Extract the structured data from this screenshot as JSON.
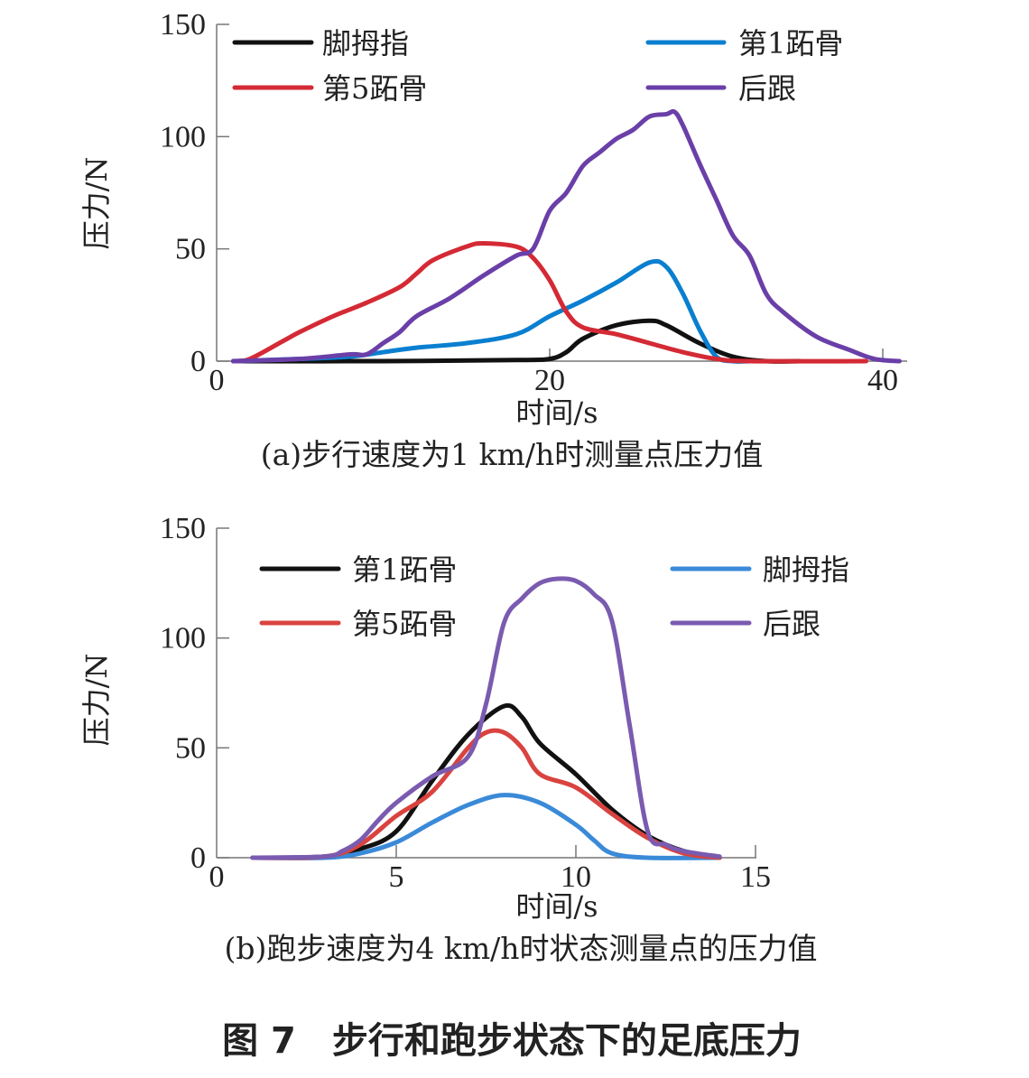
{
  "figure_title": "图 7　步行和跑步状态下的足底压力",
  "chart_data": [
    {
      "type": "line",
      "caption": "(a)步行速度为1 km/h时测量点压力值",
      "xlabel": "时间/s",
      "ylabel": "压力/N",
      "xlim": [
        0,
        42
      ],
      "ylim": [
        0,
        150
      ],
      "xticks": [
        0,
        20,
        40
      ],
      "yticks": [
        0,
        50,
        100,
        150
      ],
      "grid": false,
      "legend_placement": "top",
      "series": [
        {
          "name": "脚拇指",
          "color": "#111111",
          "points": [
            [
              1,
              0
            ],
            [
              10,
              0
            ],
            [
              18,
              0.5
            ],
            [
              20,
              1
            ],
            [
              21,
              4
            ],
            [
              22,
              10
            ],
            [
              24,
              16
            ],
            [
              26,
              18
            ],
            [
              27,
              16
            ],
            [
              29,
              8
            ],
            [
              31,
              2
            ],
            [
              33,
              0
            ],
            [
              35,
              0
            ]
          ]
        },
        {
          "name": "第1跖骨",
          "color": "#0a7fd0",
          "points": [
            [
              1,
              0
            ],
            [
              5,
              1
            ],
            [
              8,
              2
            ],
            [
              10,
              4
            ],
            [
              12,
              6
            ],
            [
              15,
              8
            ],
            [
              18,
              12
            ],
            [
              20,
              20
            ],
            [
              22,
              27
            ],
            [
              24,
              35
            ],
            [
              26,
              44
            ],
            [
              27,
              42
            ],
            [
              28,
              30
            ],
            [
              29,
              14
            ],
            [
              30,
              2
            ],
            [
              31,
              0
            ],
            [
              32,
              0
            ]
          ]
        },
        {
          "name": "第5跖骨",
          "color": "#d42a35",
          "points": [
            [
              1,
              0
            ],
            [
              2,
              1
            ],
            [
              4,
              9
            ],
            [
              5,
              13
            ],
            [
              7,
              20
            ],
            [
              9,
              26
            ],
            [
              11,
              33
            ],
            [
              12,
              39
            ],
            [
              13,
              45
            ],
            [
              15,
              51
            ],
            [
              16,
              52.5
            ],
            [
              18,
              51
            ],
            [
              19,
              46
            ],
            [
              20,
              36
            ],
            [
              21,
              22
            ],
            [
              22,
              15
            ],
            [
              24,
              12
            ],
            [
              26,
              8
            ],
            [
              28,
              4
            ],
            [
              30,
              1
            ],
            [
              32,
              0
            ],
            [
              39,
              0
            ]
          ]
        },
        {
          "name": "后跟",
          "color": "#6a3fa8",
          "points": [
            [
              1,
              0
            ],
            [
              5,
              1
            ],
            [
              8,
              3
            ],
            [
              9,
              3
            ],
            [
              10,
              8
            ],
            [
              11,
              13
            ],
            [
              12,
              20
            ],
            [
              14,
              28
            ],
            [
              16,
              38
            ],
            [
              18,
              47
            ],
            [
              19,
              50
            ],
            [
              20,
              67
            ],
            [
              21,
              75
            ],
            [
              22,
              87
            ],
            [
              23,
              93
            ],
            [
              24,
              99
            ],
            [
              25,
              103
            ],
            [
              26,
              109
            ],
            [
              27,
              110
            ],
            [
              27.5,
              111
            ],
            [
              28,
              105
            ],
            [
              29,
              88
            ],
            [
              30,
              72
            ],
            [
              31,
              56
            ],
            [
              32,
              47
            ],
            [
              33,
              30
            ],
            [
              34,
              22
            ],
            [
              36,
              11
            ],
            [
              38,
              5
            ],
            [
              39.5,
              1
            ],
            [
              41,
              0
            ]
          ]
        }
      ]
    },
    {
      "type": "line",
      "caption": "(b)跑步速度为4 km/h时状态测量点的压力值",
      "xlabel": "时间/s",
      "ylabel": "压力/N",
      "xlim": [
        0,
        15
      ],
      "ylim": [
        0,
        150
      ],
      "xticks": [
        0,
        5,
        10,
        15
      ],
      "yticks": [
        0,
        50,
        100,
        150
      ],
      "grid": false,
      "legend_placement": "top",
      "series": [
        {
          "name": "第1跖骨",
          "color": "#111111",
          "points": [
            [
              1,
              0
            ],
            [
              3,
              0.5
            ],
            [
              4,
              4
            ],
            [
              5,
              12
            ],
            [
              6,
              35
            ],
            [
              7,
              56
            ],
            [
              8,
              69
            ],
            [
              8.5,
              64
            ],
            [
              9,
              52
            ],
            [
              10,
              38
            ],
            [
              11,
              22
            ],
            [
              12,
              10
            ],
            [
              13,
              3
            ],
            [
              14,
              0
            ]
          ]
        },
        {
          "name": "脚拇指",
          "color": "#3a8ad8",
          "points": [
            [
              1,
              0
            ],
            [
              3,
              0
            ],
            [
              4,
              2
            ],
            [
              5,
              7
            ],
            [
              6,
              16
            ],
            [
              7,
              24
            ],
            [
              8,
              28.5
            ],
            [
              9,
              25
            ],
            [
              10,
              15
            ],
            [
              10.5,
              8
            ],
            [
              11,
              2
            ],
            [
              12,
              0
            ],
            [
              14,
              0
            ]
          ]
        },
        {
          "name": "第5跖骨",
          "color": "#d9433f",
          "points": [
            [
              1,
              0
            ],
            [
              3,
              0.5
            ],
            [
              4,
              6
            ],
            [
              5,
              19
            ],
            [
              6,
              30
            ],
            [
              7,
              50
            ],
            [
              7.5,
              57
            ],
            [
              8,
              57
            ],
            [
              8.5,
              50
            ],
            [
              9,
              38
            ],
            [
              10,
              32
            ],
            [
              11,
              20
            ],
            [
              12,
              9
            ],
            [
              13,
              2
            ],
            [
              14,
              0
            ]
          ]
        },
        {
          "name": "后跟",
          "color": "#7a5bb0",
          "points": [
            [
              1,
              0
            ],
            [
              3,
              0.5
            ],
            [
              3.5,
              3
            ],
            [
              4,
              8
            ],
            [
              4.5,
              17
            ],
            [
              5,
              25
            ],
            [
              6,
              37
            ],
            [
              7,
              46
            ],
            [
              7.5,
              70
            ],
            [
              8,
              107
            ],
            [
              8.5,
              118
            ],
            [
              9,
              125
            ],
            [
              9.5,
              127
            ],
            [
              10,
              126
            ],
            [
              10.5,
              120
            ],
            [
              11,
              108
            ],
            [
              11.5,
              60
            ],
            [
              12,
              12
            ],
            [
              12.5,
              6
            ],
            [
              13,
              3
            ],
            [
              14,
              0.5
            ]
          ]
        }
      ]
    }
  ]
}
